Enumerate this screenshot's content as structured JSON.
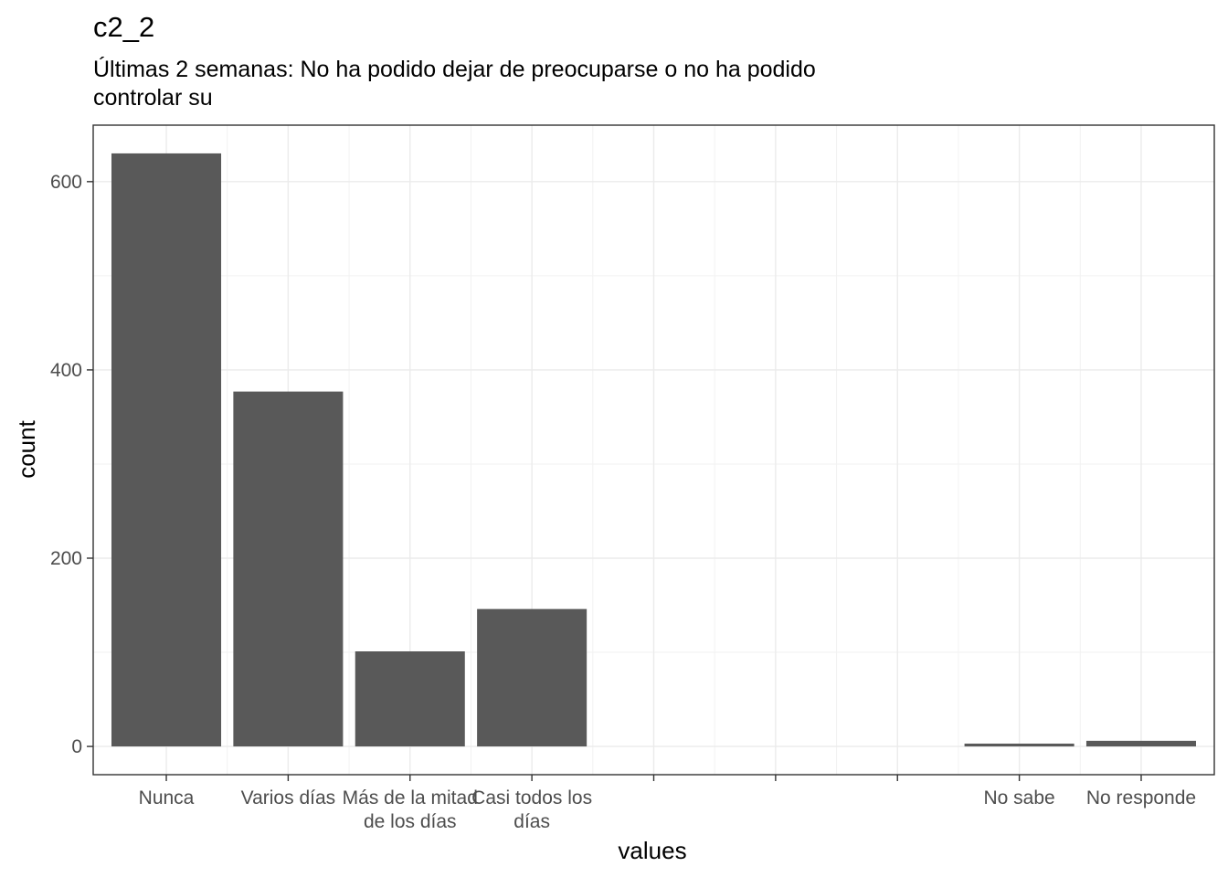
{
  "chart_data": {
    "type": "bar",
    "title": "c2_2",
    "subtitle_lines": [
      "Últimas 2 semanas: No ha podido dejar de preocuparse o no ha podido",
      "controlar su"
    ],
    "xlabel": "values",
    "ylabel": "count",
    "categories": [
      {
        "label_lines": [
          "Nunca"
        ],
        "value": 630
      },
      {
        "label_lines": [
          "Varios días"
        ],
        "value": 377
      },
      {
        "label_lines": [
          "Más de la mitad",
          "de los días"
        ],
        "value": 101
      },
      {
        "label_lines": [
          "Casi todos los",
          "días"
        ],
        "value": 146
      },
      {
        "label_lines": [
          ""
        ],
        "value": 0
      },
      {
        "label_lines": [
          ""
        ],
        "value": 0
      },
      {
        "label_lines": [
          ""
        ],
        "value": 0
      },
      {
        "label_lines": [
          "No sabe"
        ],
        "value": 3
      },
      {
        "label_lines": [
          "No responde"
        ],
        "value": 6
      }
    ],
    "y_ticks": [
      0,
      200,
      400,
      600
    ],
    "ylim": [
      -30,
      660
    ],
    "grid": true,
    "bar_color": "#595959",
    "theme": "bw"
  }
}
